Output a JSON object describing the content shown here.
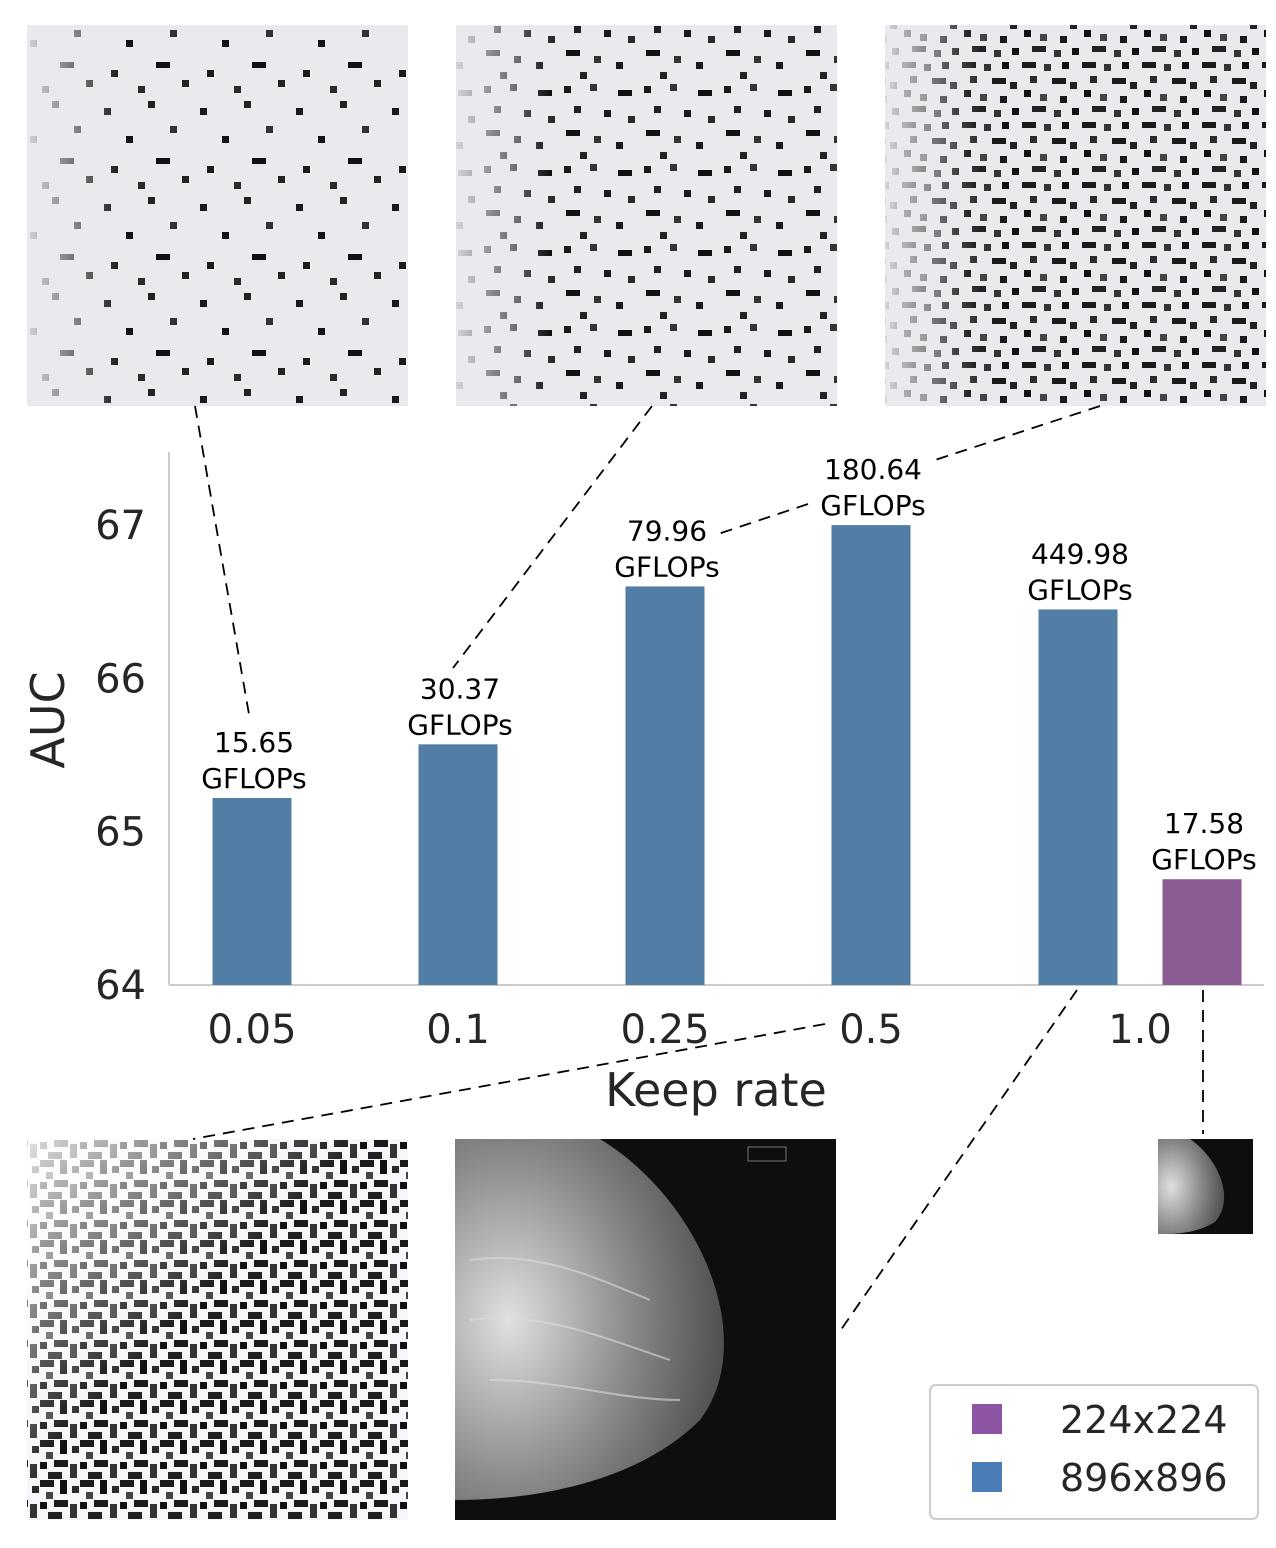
{
  "chart_data": {
    "type": "bar",
    "categories": [
      "0.05",
      "0.1",
      "0.25",
      "0.5",
      "1.0"
    ],
    "xlabel": "Keep rate",
    "ylabel": "AUC",
    "ylim": [
      64,
      67.5
    ],
    "yticks": [
      "64",
      "65",
      "66",
      "67"
    ],
    "grid": false,
    "legend_position": "bottom-right",
    "series": [
      {
        "name": "896x896",
        "color": "#527ea6",
        "legend_color": "#4a7db7",
        "values": [
          65.22,
          65.57,
          66.6,
          67.0,
          66.45
        ],
        "labels": [
          [
            "15.65",
            "GFLOPs"
          ],
          [
            "30.37",
            "GFLOPs"
          ],
          [
            "79.96",
            "GFLOPs"
          ],
          [
            "180.64",
            "GFLOPs"
          ],
          [
            "449.98",
            "GFLOPs"
          ]
        ]
      },
      {
        "name": "224x224",
        "color": "#8a5c93",
        "legend_color": "#8f55a5",
        "values": [
          null,
          null,
          null,
          null,
          64.69
        ],
        "labels": [
          null,
          null,
          null,
          null,
          [
            "17.58",
            "GFLOPs"
          ]
        ]
      }
    ]
  }
}
